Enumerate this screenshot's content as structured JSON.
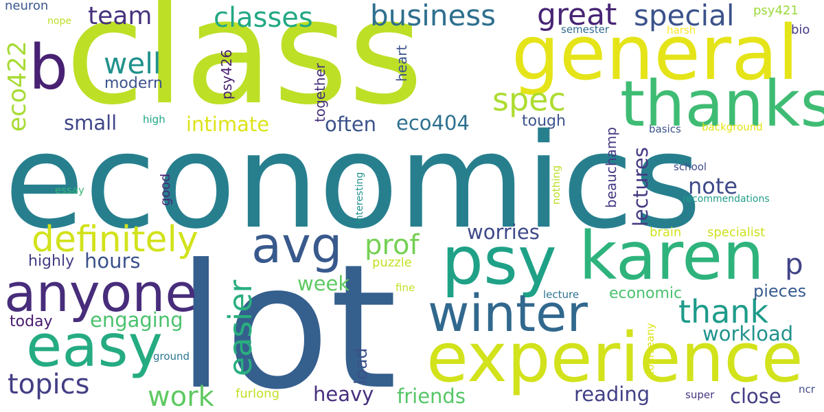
{
  "words": [
    {
      "text": "economics",
      "color": "#277f8e"
    },
    {
      "text": "class",
      "color": "#bddf26"
    },
    {
      "text": "lot",
      "color": "#355f8d"
    },
    {
      "text": "general",
      "color": "#e5e419"
    },
    {
      "text": "thanks",
      "color": "#3fbc73"
    },
    {
      "text": "psy",
      "color": "#1fa187"
    },
    {
      "text": "karen",
      "color": "#2eb37c"
    },
    {
      "text": "experience",
      "color": "#d2e21b"
    },
    {
      "text": "winter",
      "color": "#31688e"
    },
    {
      "text": "anyone",
      "color": "#472d7b"
    },
    {
      "text": "easy",
      "color": "#25ab82"
    },
    {
      "text": "b",
      "color": "#482173"
    },
    {
      "text": "avg",
      "color": "#38598c"
    },
    {
      "text": "definitely",
      "color": "#d2e21b"
    },
    {
      "text": "business",
      "color": "#2e6f8e"
    },
    {
      "text": "special",
      "color": "#3b528b"
    },
    {
      "text": "great",
      "color": "#482576"
    },
    {
      "text": "classes",
      "color": "#22a884"
    },
    {
      "text": "team",
      "color": "#46327e"
    },
    {
      "text": "well",
      "color": "#21918c"
    },
    {
      "text": "spec",
      "color": "#addc30"
    },
    {
      "text": "thank",
      "color": "#1e9b8a"
    },
    {
      "text": "easier",
      "color": "#29af7f"
    },
    {
      "text": "p",
      "color": "#414487"
    },
    {
      "text": "prof",
      "color": "#75d054"
    },
    {
      "text": "note",
      "color": "#3e4989"
    },
    {
      "text": "eco422",
      "color": "#a8db34"
    },
    {
      "text": "lectures",
      "color": "#443983"
    },
    {
      "text": "topics",
      "color": "#433e85"
    },
    {
      "text": "work",
      "color": "#5ec962"
    },
    {
      "text": "engaging",
      "color": "#4ac16d"
    },
    {
      "text": "heavy",
      "color": "#472f7d"
    },
    {
      "text": "friends",
      "color": "#56c667"
    },
    {
      "text": "reading",
      "color": "#424086"
    },
    {
      "text": "close",
      "color": "#433d84"
    },
    {
      "text": "workload",
      "color": "#20928c"
    },
    {
      "text": "worries",
      "color": "#3e4989"
    },
    {
      "text": "hours",
      "color": "#3b528b"
    },
    {
      "text": "week",
      "color": "#5ec962"
    },
    {
      "text": "often",
      "color": "#3b528b"
    },
    {
      "text": "eco404",
      "color": "#2d708e"
    },
    {
      "text": "small",
      "color": "#404688"
    },
    {
      "text": "intimate",
      "color": "#dde318"
    },
    {
      "text": "load",
      "color": "#3b528b"
    },
    {
      "text": "pieces",
      "color": "#375b8d"
    },
    {
      "text": "economic",
      "color": "#4ac16d"
    },
    {
      "text": "highly",
      "color": "#433e85"
    },
    {
      "text": "today",
      "color": "#481a6c"
    },
    {
      "text": "modern",
      "color": "#3b528b"
    },
    {
      "text": "tough",
      "color": "#3a548c"
    },
    {
      "text": "psy426",
      "color": "#481f70"
    },
    {
      "text": "together",
      "color": "#462f7c"
    },
    {
      "text": "heart",
      "color": "#3b528b"
    },
    {
      "text": "puzzle",
      "color": "#c5e021"
    },
    {
      "text": "brain",
      "color": "#d2e21b"
    },
    {
      "text": "specialist",
      "color": "#cde11d"
    },
    {
      "text": "psy421",
      "color": "#9bd93c"
    },
    {
      "text": "bio",
      "color": "#443983"
    },
    {
      "text": "neuron",
      "color": "#39568c"
    },
    {
      "text": "nope",
      "color": "#bddf26"
    },
    {
      "text": "semester",
      "color": "#31688e"
    },
    {
      "text": "harsh",
      "color": "#fde725"
    },
    {
      "text": "basics",
      "color": "#3b528b"
    },
    {
      "text": "background",
      "color": "#e2e418"
    },
    {
      "text": "high",
      "color": "#20a486"
    },
    {
      "text": "good",
      "color": "#482878"
    },
    {
      "text": "essay",
      "color": "#35b779"
    },
    {
      "text": "interesting",
      "color": "#21918c"
    },
    {
      "text": "nothing",
      "color": "#bddf26"
    },
    {
      "text": "beauchamp",
      "color": "#443983"
    },
    {
      "text": "school",
      "color": "#3e4a89"
    },
    {
      "text": "recommendations",
      "color": "#1f9e89"
    },
    {
      "text": "fine",
      "color": "#c2df23"
    },
    {
      "text": "lecture",
      "color": "#2c728e"
    },
    {
      "text": "ground",
      "color": "#2a768e"
    },
    {
      "text": "courseany",
      "color": "#dde318"
    },
    {
      "text": "furlong",
      "color": "#c2df23"
    },
    {
      "text": "super",
      "color": "#46337f"
    },
    {
      "text": "ncr",
      "color": "#3e4989"
    }
  ]
}
